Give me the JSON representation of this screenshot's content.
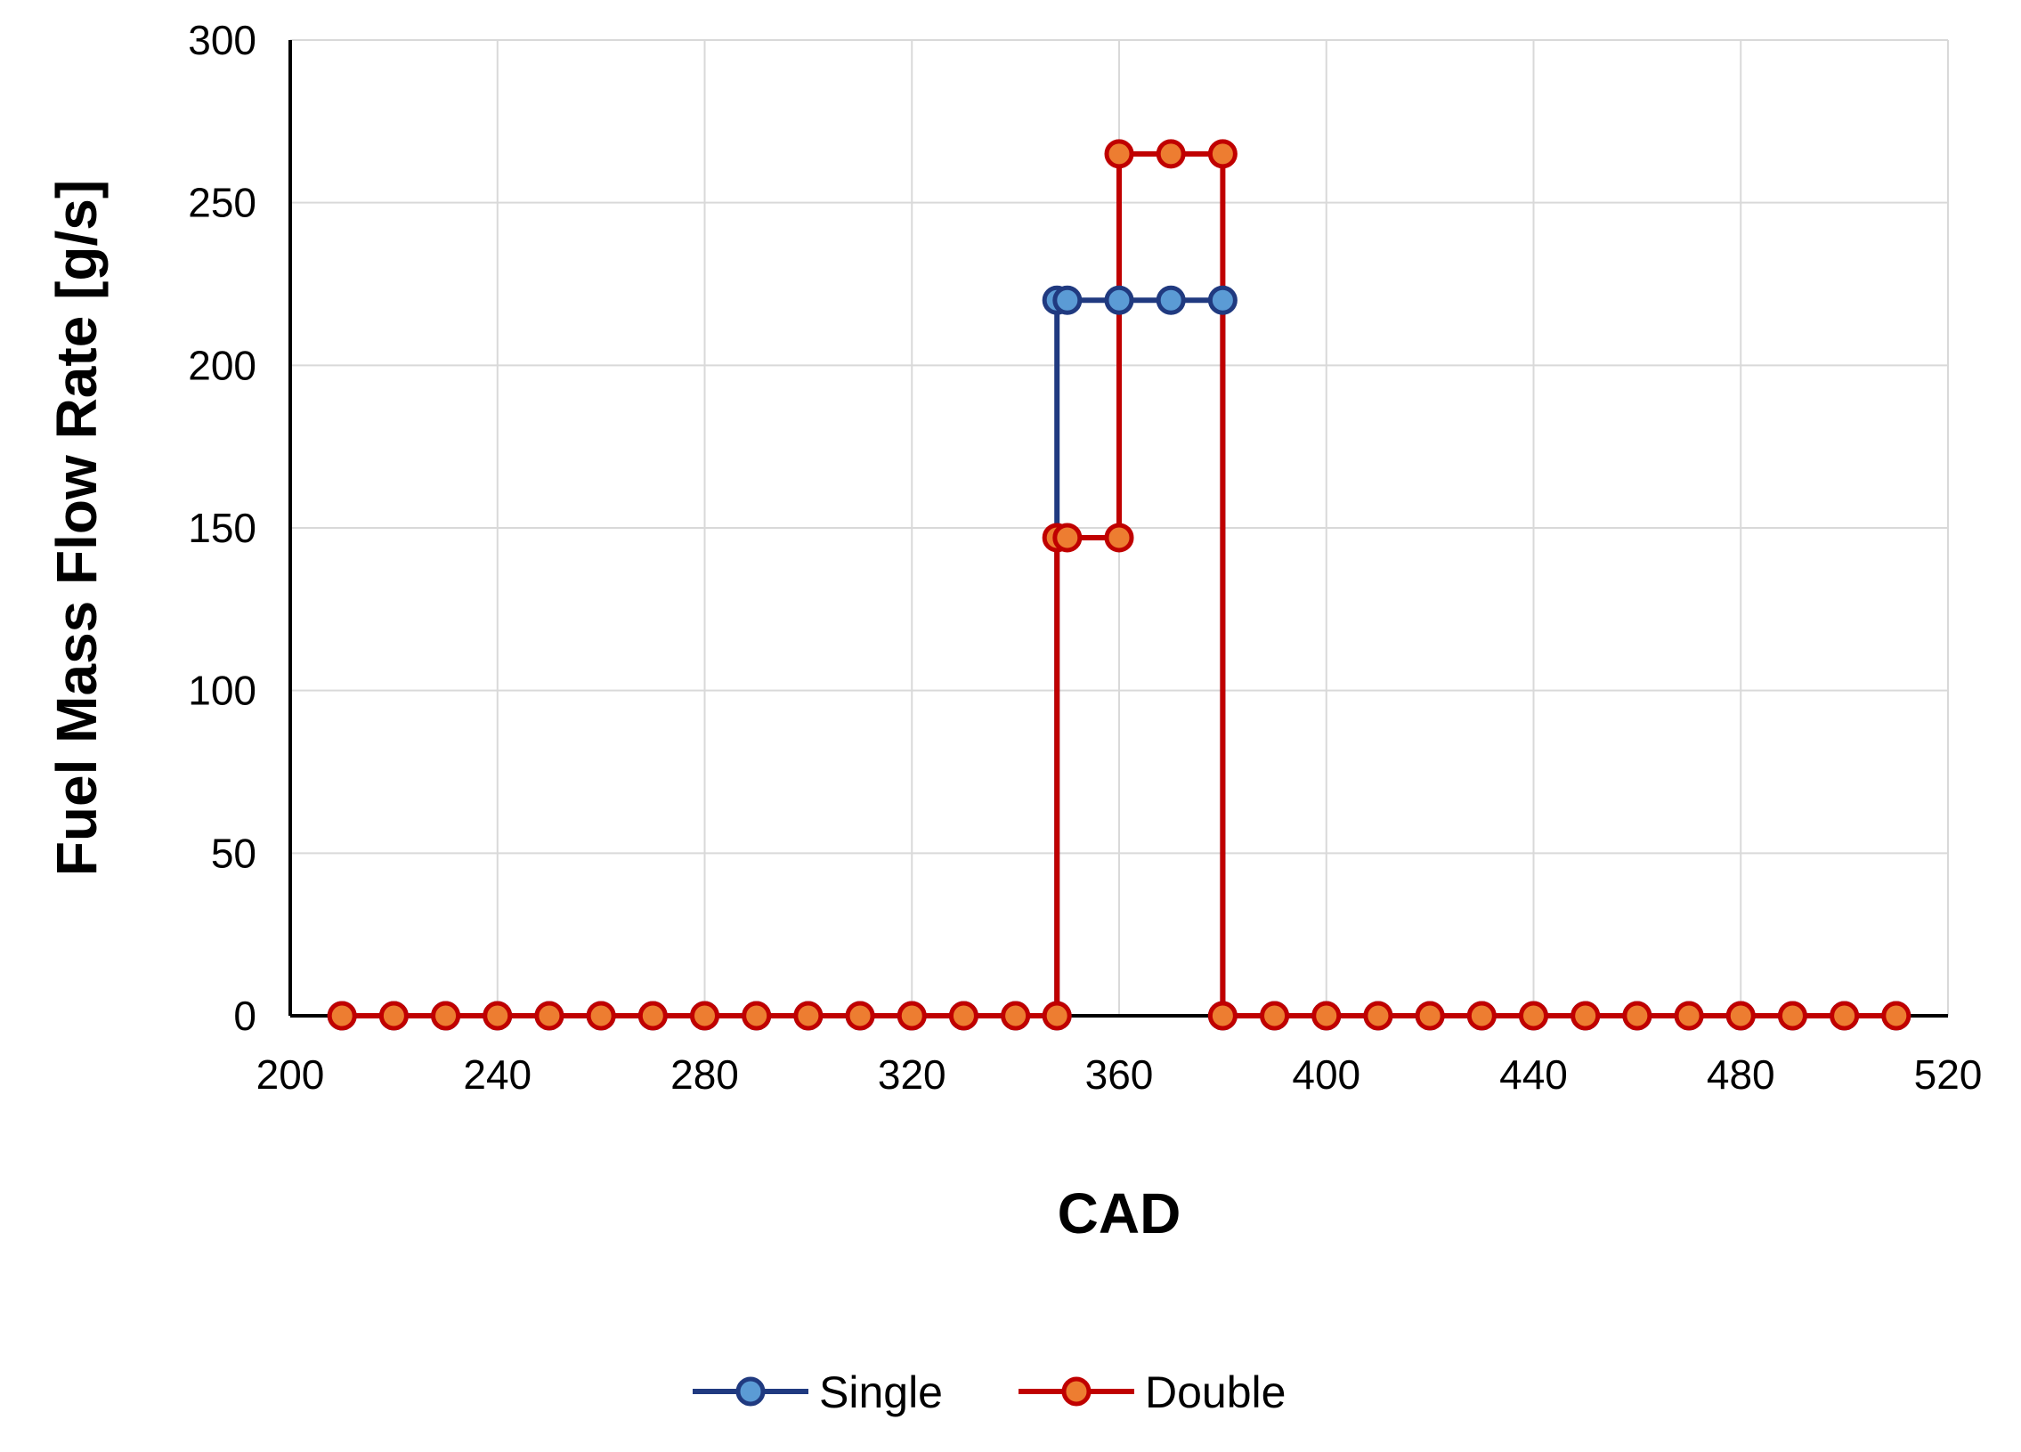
{
  "chart_data": {
    "type": "line",
    "title": "",
    "xlabel": "CAD",
    "ylabel": "Fuel Mass Flow Rate [g/s]",
    "xlim": [
      200,
      520
    ],
    "ylim": [
      0,
      300
    ],
    "xticks": [
      200,
      240,
      280,
      320,
      360,
      400,
      440,
      480,
      520
    ],
    "yticks": [
      0,
      50,
      100,
      150,
      200,
      250,
      300
    ],
    "grid": true,
    "legend_position": "bottom",
    "series": [
      {
        "name": "Single",
        "line_color": "#203a80",
        "marker_fill": "#5b9bd5",
        "marker_edge": "#203a80",
        "points": [
          [
            210,
            0
          ],
          [
            220,
            0
          ],
          [
            230,
            0
          ],
          [
            240,
            0
          ],
          [
            250,
            0
          ],
          [
            260,
            0
          ],
          [
            270,
            0
          ],
          [
            280,
            0
          ],
          [
            290,
            0
          ],
          [
            300,
            0
          ],
          [
            310,
            0
          ],
          [
            320,
            0
          ],
          [
            330,
            0
          ],
          [
            340,
            0
          ],
          [
            348,
            0
          ],
          [
            348,
            220
          ],
          [
            350,
            220
          ],
          [
            360,
            220
          ],
          [
            370,
            220
          ],
          [
            380,
            220
          ],
          [
            380,
            0
          ],
          [
            390,
            0
          ],
          [
            400,
            0
          ],
          [
            410,
            0
          ],
          [
            420,
            0
          ],
          [
            430,
            0
          ],
          [
            440,
            0
          ],
          [
            450,
            0
          ],
          [
            460,
            0
          ],
          [
            470,
            0
          ],
          [
            480,
            0
          ],
          [
            490,
            0
          ],
          [
            500,
            0
          ],
          [
            510,
            0
          ]
        ]
      },
      {
        "name": "Double",
        "line_color": "#c00000",
        "marker_fill": "#ed7d31",
        "marker_edge": "#c00000",
        "points": [
          [
            210,
            0
          ],
          [
            220,
            0
          ],
          [
            230,
            0
          ],
          [
            240,
            0
          ],
          [
            250,
            0
          ],
          [
            260,
            0
          ],
          [
            270,
            0
          ],
          [
            280,
            0
          ],
          [
            290,
            0
          ],
          [
            300,
            0
          ],
          [
            310,
            0
          ],
          [
            320,
            0
          ],
          [
            330,
            0
          ],
          [
            340,
            0
          ],
          [
            348,
            0
          ],
          [
            348,
            147
          ],
          [
            350,
            147
          ],
          [
            360,
            147
          ],
          [
            360,
            265
          ],
          [
            370,
            265
          ],
          [
            380,
            265
          ],
          [
            380,
            0
          ],
          [
            390,
            0
          ],
          [
            400,
            0
          ],
          [
            410,
            0
          ],
          [
            420,
            0
          ],
          [
            430,
            0
          ],
          [
            440,
            0
          ],
          [
            450,
            0
          ],
          [
            460,
            0
          ],
          [
            470,
            0
          ],
          [
            480,
            0
          ],
          [
            490,
            0
          ],
          [
            500,
            0
          ],
          [
            510,
            0
          ]
        ]
      }
    ]
  }
}
